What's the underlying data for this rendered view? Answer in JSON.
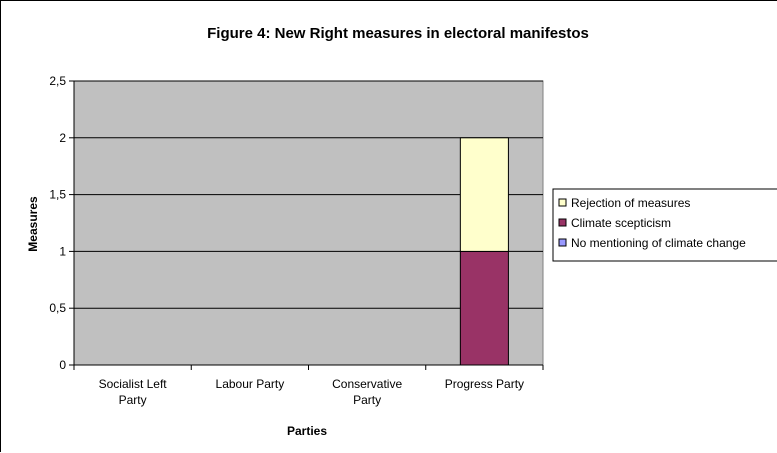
{
  "chart_data": {
    "type": "bar",
    "stacked": true,
    "title": "Figure 4: New Right measures in electoral manifestos",
    "xlabel": "Parties",
    "ylabel": "Measures",
    "categories": [
      [
        "Socialist Left",
        "Party"
      ],
      [
        "Labour Party"
      ],
      [
        "Conservative",
        "Party"
      ],
      [
        "Progress Party"
      ]
    ],
    "y_ticks": [
      "0",
      "0,5",
      "1",
      "1,5",
      "2",
      "2,5"
    ],
    "ylim": [
      0,
      2.5
    ],
    "grid": true,
    "legend_position": "right",
    "series": [
      {
        "name": "No mentioning of climate change",
        "values": [
          0,
          0,
          0,
          0
        ],
        "color": "#9999ff"
      },
      {
        "name": "Climate scepticism",
        "values": [
          0,
          0,
          0,
          1
        ],
        "color": "#993366"
      },
      {
        "name": "Rejection of measures",
        "values": [
          0,
          0,
          0,
          1
        ],
        "color": "#ffffcc"
      }
    ],
    "legend_order": [
      2,
      1,
      0
    ],
    "plot_background": "#c0c0c0"
  }
}
